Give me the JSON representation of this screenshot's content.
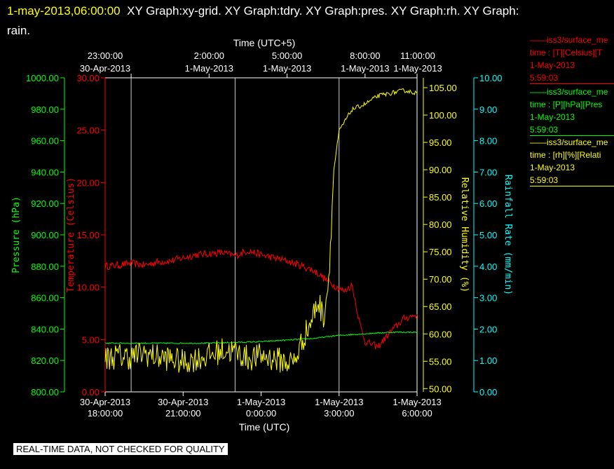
{
  "header": {
    "timestamp": "1-may-2013,06:00:00",
    "rest": "XY Graph:xy-grid.  XY Graph:tdry.  XY Graph:pres.  XY Graph:rh.  XY Graph:",
    "rest2": "rain."
  },
  "footer": {
    "quality_notice": "REAL-TIME DATA, NOT CHECKED FOR QUALITY"
  },
  "legend": [
    {
      "color": "#ff0000",
      "line1": "iss3/surface_me",
      "line2": "time : [T][Celsius][T",
      "line3": "1-May-2013",
      "line4": "5:59:03"
    },
    {
      "color": "#00ff00",
      "line1": "iss3/surface_me",
      "line2": "time : [P][hPa][Pres",
      "line3": "1-May-2013",
      "line4": "5:59:03"
    },
    {
      "color": "#ffff00",
      "line1": "iss3/surface_me",
      "line2": "time : [rh][%][Relati",
      "line3": "1-May-2013",
      "line4": "5:59:03"
    }
  ],
  "chart_data": {
    "type": "line",
    "grid": "vertical lines at each top-axis tick",
    "x_axis_bottom": {
      "label": "Time (UTC)",
      "range": [
        "30-Apr-2013 18:00:00",
        "1-May-2013 6:00:00"
      ],
      "ticks": [
        {
          "line1": "30-Apr-2013",
          "line2": "18:00:00"
        },
        {
          "line1": "30-Apr-2013",
          "line2": "21:00:00"
        },
        {
          "line1": "1-May-2013",
          "line2": "0:00:00"
        },
        {
          "line1": "1-May-2013",
          "line2": "3:00:00"
        },
        {
          "line1": "1-May-2013",
          "line2": "6:00:00"
        }
      ]
    },
    "x_axis_top": {
      "label": "Time (UTC+5)",
      "ticks": [
        {
          "line1": "23:00:00",
          "line2": "30-Apr-2013"
        },
        {
          "line1": "2:00:00",
          "line2": "1-May-2013"
        },
        {
          "line1": "5:00:00",
          "line2": "1-May-2013"
        },
        {
          "line1": "8:00:00",
          "line2": "1-May-2013"
        },
        {
          "line1": "11:00:00",
          "line2": "1-May-2013"
        }
      ]
    },
    "y_axes": [
      {
        "id": "pressure",
        "label": "Pressure (hPa)",
        "color": "#00ff00",
        "range": [
          800,
          1000
        ],
        "ticks": [
          "800.00",
          "820.00",
          "840.00",
          "860.00",
          "880.00",
          "900.00",
          "920.00",
          "940.00",
          "960.00",
          "980.00",
          "1000.00"
        ]
      },
      {
        "id": "temperature",
        "label": "Temperature (Celsius)",
        "color": "#ff0000",
        "range": [
          0,
          30
        ],
        "ticks": [
          "0.00",
          "5.00",
          "10.00",
          "15.00",
          "20.00",
          "25.00",
          "30.00"
        ]
      },
      {
        "id": "rh",
        "label": "Relative Humidity (%)",
        "color": "#ffff00",
        "range": [
          49.4,
          106.8
        ],
        "ticks": [
          "50.00",
          "55.00",
          "60.00",
          "65.00",
          "70.00",
          "75.00",
          "80.00",
          "85.00",
          "90.00",
          "95.00",
          "100.00",
          "105.00"
        ]
      },
      {
        "id": "rain",
        "label": "Rainfall Rate (mm/min)",
        "color": "#00ffff",
        "range": [
          0,
          10
        ],
        "ticks": [
          "0.00",
          "1.00",
          "2.00",
          "3.00",
          "4.00",
          "5.00",
          "6.00",
          "7.00",
          "8.00",
          "9.00",
          "10.00"
        ]
      }
    ],
    "series": [
      {
        "axis": "temperature",
        "color": "#ff0000",
        "x": [
          0,
          0.5,
          1.0,
          1.5,
          2.0,
          2.5,
          3.0,
          3.5,
          4.0,
          4.5,
          5.0,
          5.5,
          6.0,
          6.5,
          7.0,
          7.5,
          8.0,
          8.2,
          8.5,
          8.8,
          9.0,
          9.2,
          9.5,
          9.8,
          10.0,
          10.5,
          11.0,
          11.5,
          12.0
        ],
        "y": [
          12.0,
          12.1,
          12.3,
          12.1,
          12.4,
          12.5,
          12.8,
          13.1,
          13.2,
          13.3,
          13.0,
          13.5,
          13.1,
          12.8,
          12.5,
          12.1,
          11.6,
          11.3,
          10.7,
          10.2,
          9.9,
          9.6,
          10.2,
          6.5,
          4.8,
          4.3,
          5.8,
          7.0,
          7.4
        ]
      },
      {
        "axis": "pressure",
        "color": "#00ff00",
        "x": [
          0,
          2,
          4,
          6,
          7,
          8,
          9,
          10,
          11,
          12
        ],
        "y": [
          831.0,
          831.0,
          831.0,
          832.0,
          833.0,
          834.0,
          836.0,
          837.0,
          838.0,
          838.0
        ]
      },
      {
        "axis": "rh",
        "color": "#ffff00",
        "x": [
          0,
          0.5,
          1.0,
          1.5,
          2.0,
          2.5,
          3.0,
          3.5,
          4.0,
          4.5,
          5.0,
          5.5,
          6.0,
          6.5,
          7.0,
          7.3,
          7.6,
          7.9,
          8.2,
          8.4,
          8.6,
          8.8,
          9.0,
          9.3,
          9.5,
          10.0,
          10.5,
          11.0,
          11.5,
          12.0
        ],
        "y": [
          55.5,
          56.0,
          55.8,
          56.5,
          55.8,
          55.5,
          54.8,
          55.5,
          56.0,
          57.0,
          56.8,
          55.5,
          56.0,
          55.5,
          54.8,
          55.0,
          59.0,
          62.0,
          66.0,
          63.0,
          70.0,
          90.0,
          97.0,
          99.5,
          101.0,
          102.0,
          103.5,
          104.0,
          104.5,
          104.0
        ]
      }
    ]
  }
}
